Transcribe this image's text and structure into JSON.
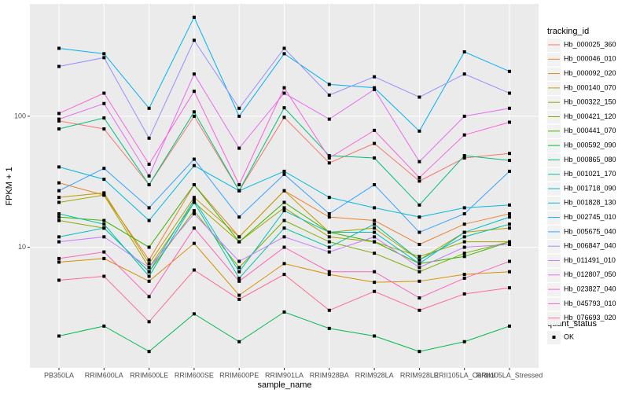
{
  "chart_data": {
    "type": "line",
    "log_y": true,
    "grid": true,
    "x_label": "sample_name",
    "y_label": "FPKM + 1",
    "legend_title": "tracking_id",
    "legend_position": "right",
    "shape_legend_title": "quant_status",
    "shape_legend_labels": [
      "OK"
    ],
    "categories": [
      "PB350LA",
      "RRIM600LA",
      "RRIM600LE",
      "RRIM600SE",
      "RRIM600PE",
      "RRIM901LA",
      "RRIM928BA",
      "RRIM928LA",
      "RRIM928LE",
      "RRII105LA_Control",
      "RRII105LA_Stressed"
    ],
    "ylim": [
      1.2,
      720
    ],
    "yticks": [
      10,
      100
    ],
    "series": [
      {
        "name": "Hb_000025_360",
        "color": "#F8766D",
        "values": [
          92,
          80,
          30,
          100,
          27,
          98,
          44,
          62,
          32,
          48,
          52
        ]
      },
      {
        "name": "Hb_000046_010",
        "color": "#EA8331",
        "values": [
          31,
          25,
          8,
          30,
          12,
          27,
          17,
          16,
          10.5,
          15,
          18
        ]
      },
      {
        "name": "Hb_000092_020",
        "color": "#D89000",
        "values": [
          7.7,
          8.2,
          5.5,
          10.7,
          4.3,
          7.5,
          6.2,
          5.4,
          5.5,
          6.2,
          6.5
        ]
      },
      {
        "name": "Hb_000140_070",
        "color": "#C09B00",
        "values": [
          24,
          26,
          7.5,
          24,
          12,
          27,
          13,
          14,
          8,
          13,
          14
        ]
      },
      {
        "name": "Hb_000322_150",
        "color": "#A3A500",
        "values": [
          22,
          25,
          7,
          22,
          11,
          20,
          12,
          11,
          8.5,
          11,
          11
        ]
      },
      {
        "name": "Hb_000421_120",
        "color": "#7CAE00",
        "values": [
          16,
          14,
          6.5,
          19,
          7,
          16,
          11,
          9,
          6.5,
          9,
          11
        ]
      },
      {
        "name": "Hb_000441_070",
        "color": "#39B600",
        "values": [
          17,
          16,
          10,
          30,
          11,
          22,
          13,
          11,
          7.5,
          8.5,
          11
        ]
      },
      {
        "name": "Hb_000592_090",
        "color": "#00BB4E",
        "values": [
          2.1,
          2.5,
          1.6,
          3.1,
          1.9,
          3.2,
          2.4,
          2.1,
          1.6,
          1.9,
          2.5
        ]
      },
      {
        "name": "Hb_000865_080",
        "color": "#00BF7D",
        "values": [
          80,
          97,
          30,
          108,
          27,
          116,
          50,
          48,
          21,
          50,
          46
        ]
      },
      {
        "name": "Hb_001021_170",
        "color": "#00C1A3",
        "values": [
          18,
          15,
          6,
          22,
          5.8,
          14,
          10,
          15,
          8,
          12,
          15
        ]
      },
      {
        "name": "Hb_001718_090",
        "color": "#00BFC4",
        "values": [
          12,
          14,
          6.5,
          23,
          6.5,
          19,
          13,
          13,
          7.5,
          13,
          17
        ]
      },
      {
        "name": "Hb_001828_130",
        "color": "#00BAE0",
        "values": [
          41,
          33,
          16,
          42,
          27,
          38,
          24,
          20,
          17,
          20,
          21
        ]
      },
      {
        "name": "Hb_002745_010",
        "color": "#00B0F6",
        "values": [
          330,
          300,
          115,
          570,
          100,
          300,
          175,
          165,
          77,
          310,
          220
        ]
      },
      {
        "name": "Hb_005675_040",
        "color": "#35A2FF",
        "values": [
          27,
          40,
          20,
          47,
          17,
          36,
          18,
          30,
          13,
          18,
          38
        ]
      },
      {
        "name": "Hb_006847_040",
        "color": "#9590FF",
        "values": [
          240,
          280,
          68,
          380,
          115,
          330,
          145,
          200,
          140,
          210,
          150
        ]
      },
      {
        "name": "Hb_011491_010",
        "color": "#C77CFF",
        "values": [
          11,
          12,
          7,
          18,
          7.8,
          12,
          9.2,
          12,
          7,
          10,
          10.5
        ]
      },
      {
        "name": "Hb_012807_050",
        "color": "#E76BF3",
        "values": [
          95,
          125,
          35,
          210,
          57,
          150,
          95,
          160,
          45,
          100,
          115
        ]
      },
      {
        "name": "Hb_023827_040",
        "color": "#FA62DB",
        "values": [
          105,
          150,
          43,
          155,
          30,
          165,
          48,
          78,
          34,
          72,
          90
        ]
      },
      {
        "name": "Hb_045793_010",
        "color": "#FF62BC",
        "values": [
          8.2,
          9.2,
          4.2,
          14,
          5.5,
          10,
          6.5,
          6.5,
          4.1,
          5.8,
          7.8
        ]
      },
      {
        "name": "Hb_076693_020",
        "color": "#FF6C90",
        "values": [
          5.6,
          6,
          2.7,
          6.7,
          4,
          6.2,
          3.3,
          4.6,
          3.3,
          4.4,
          4.9
        ]
      }
    ]
  }
}
